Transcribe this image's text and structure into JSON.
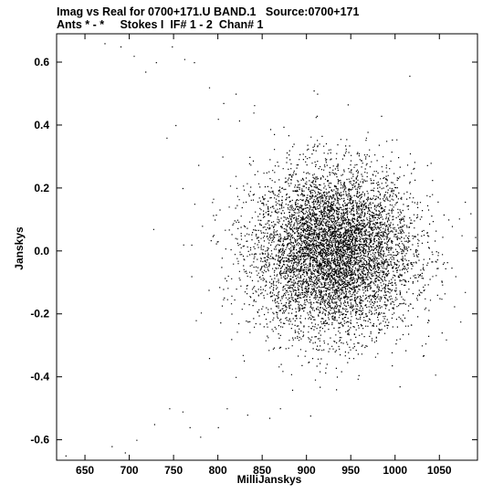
{
  "header": {
    "line1": "Imag vs Real for 0700+171.U BAND.1   Source:0700+171",
    "line2": "Ants * - *     Stokes I  IF# 1 - 2  Chan# 1"
  },
  "chart_data": {
    "type": "scatter",
    "title": "Imag vs Real for 0700+171.U BAND.1   Source:0700+171",
    "subtitle": "Ants * - *     Stokes I  IF# 1 - 2  Chan# 1",
    "xlabel": "MilliJanskys",
    "ylabel": "Janskys",
    "xlim": [
      618,
      1093
    ],
    "ylim": [
      -0.665,
      0.69
    ],
    "xticks": [
      650,
      700,
      750,
      800,
      850,
      900,
      950,
      1000,
      1050
    ],
    "yticks": [
      -0.6,
      -0.4,
      -0.2,
      0.0,
      0.2,
      0.4,
      0.6
    ],
    "xtick_labels": [
      "650",
      "700",
      "750",
      "800",
      "850",
      "900",
      "950",
      "1000",
      "1050"
    ],
    "ytick_labels": [
      "-0.6",
      "-0.4",
      "-0.2",
      "0.0",
      "0.2",
      "0.4",
      "0.6"
    ],
    "grid": false,
    "series": [
      {
        "center": [
          930,
          0.0
        ],
        "spread": [
          45,
          0.13
        ],
        "point_count": 9000,
        "outliers": [
          [
            628,
            -0.65
          ],
          [
            672,
            0.66
          ],
          [
            690,
            0.65
          ],
          [
            705,
            0.62
          ],
          [
            718,
            0.57
          ],
          [
            730,
            0.6
          ],
          [
            748,
            0.65
          ],
          [
            762,
            0.61
          ],
          [
            773,
            0.6
          ],
          [
            790,
            0.52
          ],
          [
            806,
            0.47
          ],
          [
            820,
            0.5
          ],
          [
            840,
            0.44
          ],
          [
            908,
            0.51
          ],
          [
            912,
            0.5
          ],
          [
            680,
            -0.62
          ],
          [
            695,
            -0.64
          ],
          [
            708,
            -0.6
          ],
          [
            728,
            -0.55
          ],
          [
            745,
            -0.5
          ],
          [
            760,
            -0.51
          ],
          [
            768,
            -0.56
          ],
          [
            780,
            -0.59
          ],
          [
            800,
            -0.56
          ],
          [
            810,
            -0.5
          ],
          [
            833,
            -0.52
          ],
          [
            858,
            -0.53
          ],
          [
            870,
            -0.5
          ],
          [
            727,
            0.07
          ],
          [
            770,
            -0.08
          ],
          [
            752,
            0.4
          ],
          [
            742,
            0.36
          ],
          [
            800,
            0.42
          ],
          [
            820,
            -0.4
          ],
          [
            790,
            -0.34
          ],
          [
            1060,
            0.1
          ],
          [
            1075,
            0.05
          ],
          [
            1085,
            0.12
          ],
          [
            1068,
            -0.08
          ],
          [
            1050,
            -0.15
          ],
          [
            1005,
            -0.43
          ],
          [
            990,
            0.35
          ],
          [
            1040,
            0.28
          ],
          [
            1030,
            -0.3
          ],
          [
            770,
            0.02
          ],
          [
            782,
            0.08
          ],
          [
            775,
            -0.22
          ],
          [
            760,
            0.2
          ],
          [
            805,
            0.3
          ],
          [
            815,
            -0.28
          ]
        ]
      }
    ]
  }
}
